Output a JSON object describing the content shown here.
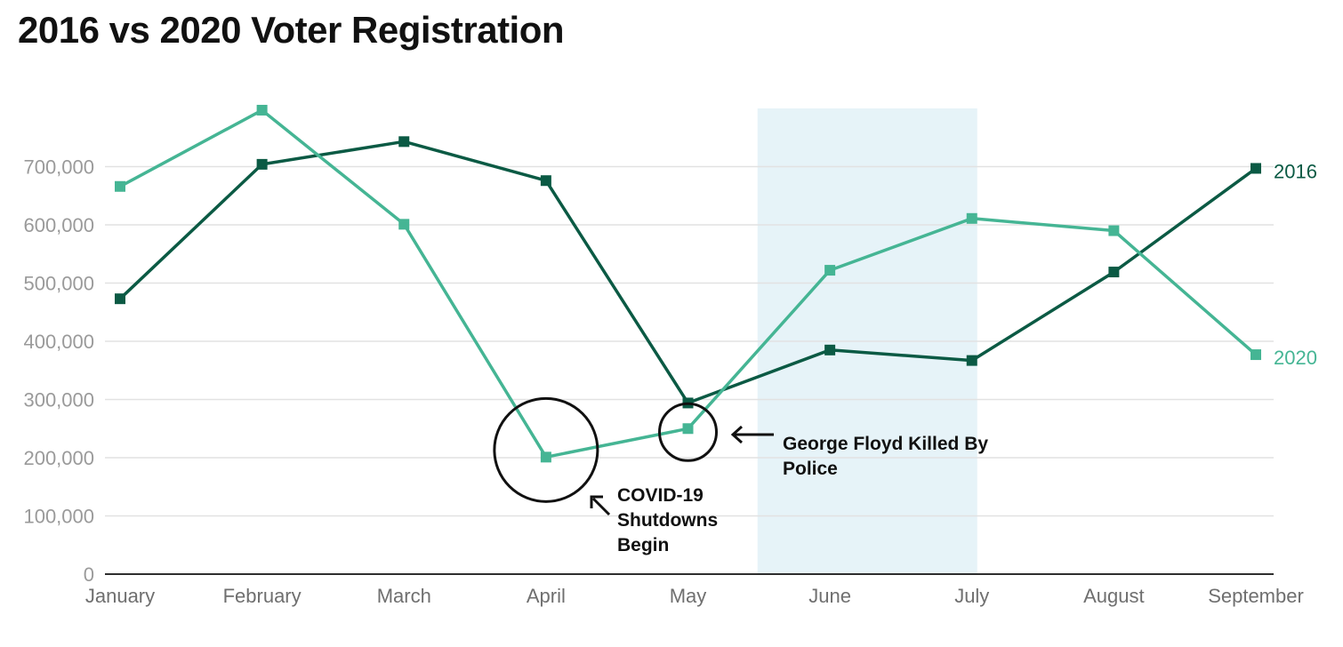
{
  "chart_data": {
    "type": "line",
    "title": "2016 vs 2020 Voter Registration",
    "xlabel": "",
    "ylabel": "",
    "categories": [
      "January",
      "February",
      "March",
      "April",
      "May",
      "June",
      "July",
      "August",
      "September"
    ],
    "ylim": [
      0,
      800000
    ],
    "yticks": [
      0,
      100000,
      200000,
      300000,
      400000,
      500000,
      600000,
      700000
    ],
    "ytick_labels": [
      "0",
      "100,000",
      "200,000",
      "300,000",
      "400,000",
      "500,000",
      "600,000",
      "700,000"
    ],
    "grid": true,
    "legend": "inline-right",
    "series": [
      {
        "name": "2016",
        "color": "#0b5a44",
        "values": [
          473000,
          704000,
          743000,
          676000,
          294000,
          385000,
          367000,
          519000,
          697000
        ]
      },
      {
        "name": "2020",
        "color": "#45b594",
        "values": [
          666000,
          797000,
          601000,
          201000,
          250000,
          522000,
          611000,
          590000,
          377000
        ]
      }
    ],
    "highlight_band": {
      "from_category": "May",
      "to_category": "July",
      "color": "#e6f3f8"
    },
    "annotations": [
      {
        "category": "April",
        "lines": [
          "COVID-19",
          "Shutdowns",
          "Begin"
        ]
      },
      {
        "category": "May",
        "lines": [
          "George Floyd Killed By",
          "Police"
        ]
      }
    ]
  }
}
